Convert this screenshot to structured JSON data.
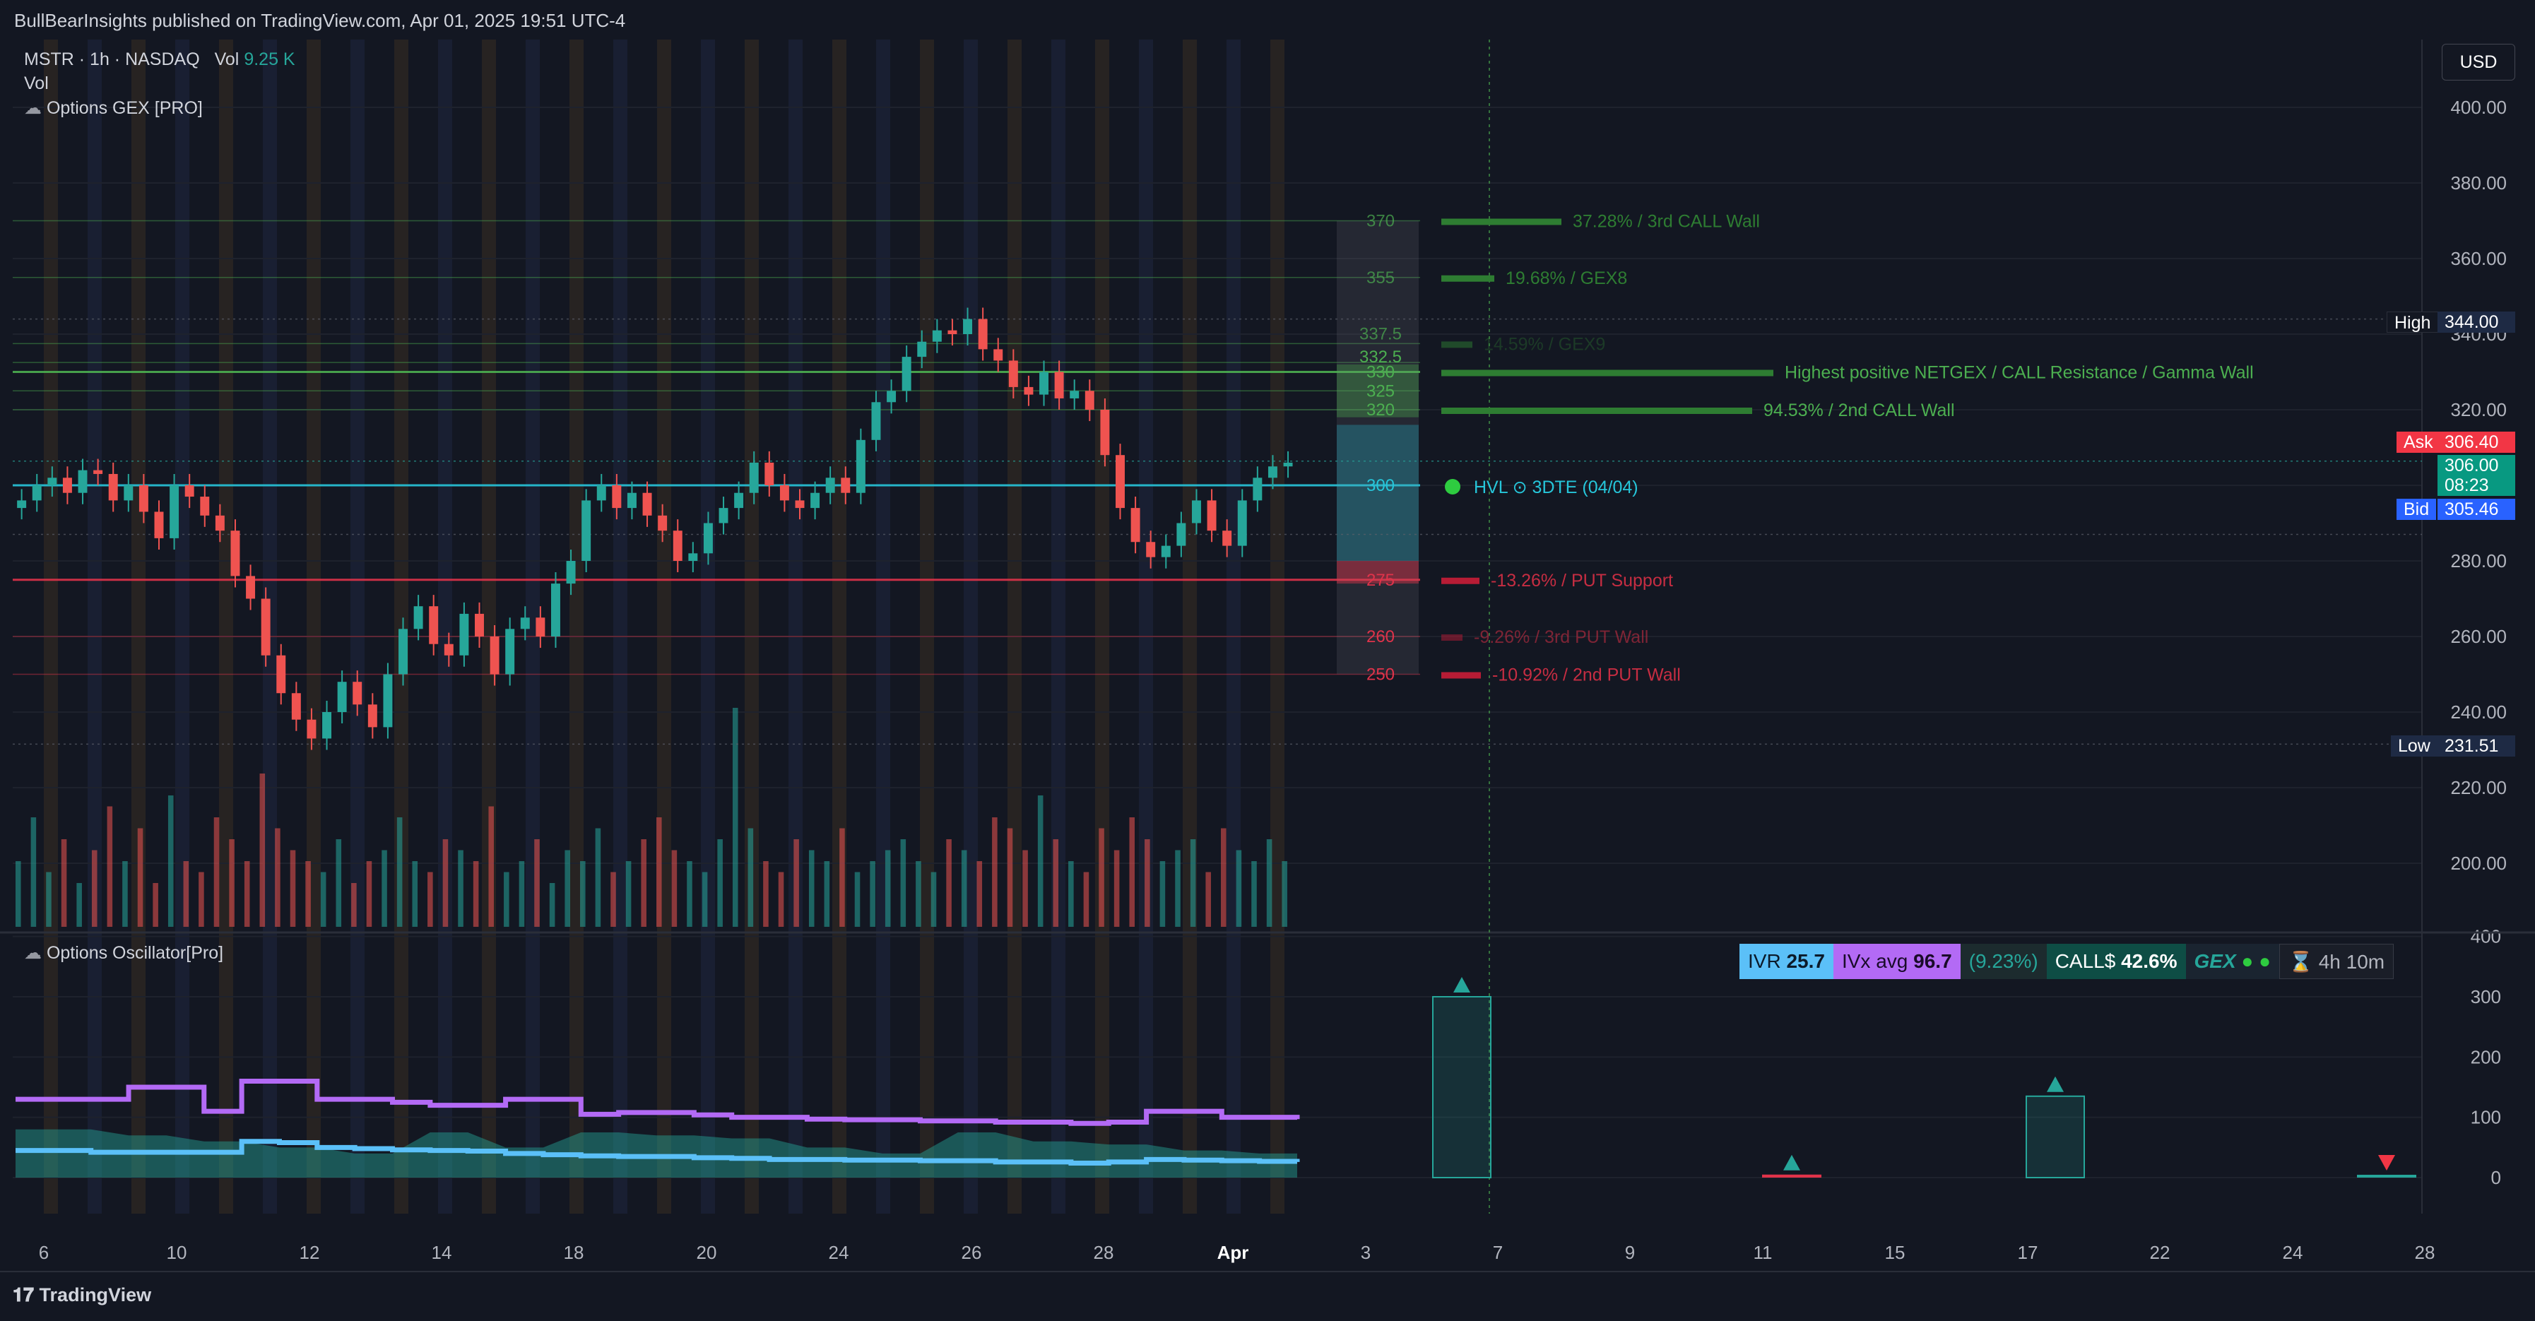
{
  "header": {
    "publisher": "BullBearInsights published on TradingView.com, Apr 01, 2025 19:51 UTC-4",
    "symbol": "MSTR · 1h · NASDAQ",
    "vol_label": "Vol",
    "vol_value": "9.25 K",
    "vol_line": "Vol",
    "indicator1": "Options GEX [PRO]",
    "indicator2": "Options Oscillator[Pro]",
    "currency": "USD",
    "brand": "TradingView"
  },
  "colors": {
    "background": "#131722",
    "up": "#26a69a",
    "down": "#ef5350",
    "call": "#4caf50",
    "put": "#e0334a",
    "hvl": "#26c6da",
    "ivr": "#5bc0f8",
    "ivx": "#b36af5"
  },
  "price_markers": {
    "high_label": "High",
    "high_value": "344.00",
    "ask_label": "Ask",
    "ask_value": "306.40",
    "last_value": "306.00",
    "countdown": "08:23",
    "bid_label": "Bid",
    "bid_value": "305.46",
    "low_label": "Low",
    "low_value": "231.51"
  },
  "oscillator_panel": {
    "ivr_label": "IVR",
    "ivr_value": "25.7",
    "ivx_label": "IVx avg",
    "ivx_value": "96.7",
    "change": "(9.23%)",
    "call_label": "CALL$",
    "call_value": "42.6%",
    "gex_label": "GEX",
    "timer": "4h 10m"
  },
  "chart_data": {
    "type": "candlestick",
    "price_axis": {
      "ticks": [
        "400.00",
        "380.00",
        "360.00",
        "340.00",
        "320.00",
        "300.00",
        "280.00",
        "260.00",
        "240.00",
        "220.00",
        "200.00"
      ],
      "ylim": [
        182,
        408
      ]
    },
    "oscillator_axis": {
      "ticks": [
        "400",
        "300",
        "200",
        "100",
        "0"
      ],
      "ylim": [
        -40,
        400
      ]
    },
    "x_ticks": [
      "6",
      "10",
      "12",
      "14",
      "18",
      "20",
      "24",
      "26",
      "28",
      "Apr",
      "3",
      "7",
      "9",
      "11",
      "15",
      "17",
      "22",
      "24",
      "28"
    ],
    "candles_close_path": [
      296,
      300,
      302,
      298,
      304,
      303,
      296,
      300,
      293,
      286,
      300,
      297,
      292,
      288,
      276,
      270,
      255,
      245,
      238,
      233,
      240,
      248,
      242,
      236,
      250,
      262,
      268,
      258,
      255,
      266,
      260,
      250,
      262,
      265,
      260,
      274,
      280,
      296,
      300,
      294,
      298,
      292,
      288,
      280,
      282,
      290,
      294,
      298,
      306,
      300,
      296,
      294,
      298,
      302,
      298,
      312,
      322,
      325,
      334,
      338,
      341,
      340,
      344,
      336,
      333,
      326,
      324,
      330,
      323,
      325,
      320,
      308,
      294,
      285,
      281,
      284,
      290,
      296,
      288,
      284,
      296,
      302,
      305,
      306
    ],
    "candles_open_path": [
      294,
      296,
      300,
      302,
      298,
      304,
      303,
      296,
      300,
      293,
      286,
      300,
      297,
      292,
      288,
      276,
      270,
      255,
      245,
      238,
      233,
      240,
      248,
      242,
      236,
      250,
      262,
      268,
      258,
      255,
      266,
      260,
      250,
      262,
      265,
      260,
      274,
      280,
      296,
      300,
      294,
      298,
      292,
      288,
      280,
      282,
      290,
      294,
      298,
      306,
      300,
      296,
      294,
      298,
      302,
      298,
      312,
      322,
      325,
      334,
      338,
      341,
      340,
      344,
      336,
      333,
      326,
      324,
      330,
      323,
      325,
      320,
      308,
      294,
      285,
      281,
      284,
      290,
      296,
      288,
      284,
      296,
      302,
      305
    ],
    "volume_path": [
      0.3,
      0.5,
      0.25,
      0.4,
      0.2,
      0.35,
      0.55,
      0.3,
      0.45,
      0.2,
      0.6,
      0.3,
      0.25,
      0.5,
      0.4,
      0.3,
      0.7,
      0.45,
      0.35,
      0.3,
      0.25,
      0.4,
      0.2,
      0.3,
      0.35,
      0.5,
      0.3,
      0.25,
      0.4,
      0.35,
      0.3,
      0.55,
      0.25,
      0.3,
      0.4,
      0.2,
      0.35,
      0.3,
      0.45,
      0.25,
      0.3,
      0.4,
      0.5,
      0.35,
      0.3,
      0.25,
      0.4,
      1.0,
      0.45,
      0.3,
      0.25,
      0.4,
      0.35,
      0.3,
      0.45,
      0.25,
      0.3,
      0.35,
      0.4,
      0.3,
      0.25,
      0.4,
      0.35,
      0.3,
      0.5,
      0.45,
      0.35,
      0.6,
      0.4,
      0.3,
      0.25,
      0.45,
      0.35,
      0.5,
      0.4,
      0.3,
      0.35,
      0.4,
      0.25,
      0.45,
      0.35,
      0.3,
      0.4,
      0.3
    ],
    "gex_levels": [
      {
        "level": "370",
        "label": "37.28% / 3rd CALL Wall",
        "value": 370,
        "kind": "call"
      },
      {
        "level": "355",
        "label": "19.68% / GEX8",
        "value": 355,
        "kind": "call"
      },
      {
        "level": "337.5",
        "label": "14.59% / GEX9",
        "value": 337.5,
        "kind": "call"
      },
      {
        "level": "332.5",
        "label": "",
        "value": 332.5,
        "kind": "call"
      },
      {
        "level": "330",
        "label": "Highest positive NETGEX / CALL Resistance / Gamma Wall",
        "value": 330,
        "kind": "call"
      },
      {
        "level": "325",
        "label": "",
        "value": 325,
        "kind": "call"
      },
      {
        "level": "320",
        "label": "94.53% / 2nd CALL Wall",
        "value": 320,
        "kind": "call"
      },
      {
        "level": "300",
        "label": "HVL",
        "value": 300,
        "kind": "hvl"
      },
      {
        "level": "275",
        "label": "-13.26% / PUT Support",
        "value": 275,
        "kind": "put"
      },
      {
        "level": "260",
        "label": "-9.26% / 3rd PUT Wall",
        "value": 260,
        "kind": "put"
      },
      {
        "level": "250",
        "label": "-10.92% / 2nd PUT Wall",
        "value": 250,
        "kind": "put"
      }
    ],
    "hvl_note": "3DTE (04/04)",
    "oscillator_series": [
      {
        "kind": "ivx",
        "values": [
          130,
          130,
          130,
          150,
          150,
          110,
          160,
          160,
          130,
          130,
          125,
          120,
          120,
          130,
          130,
          105,
          108,
          108,
          104,
          100,
          100,
          97,
          96,
          96,
          94,
          94,
          92,
          92,
          90,
          92,
          110,
          110,
          100,
          100,
          97
        ]
      },
      {
        "kind": "ivr",
        "values": [
          45,
          45,
          42,
          42,
          42,
          42,
          60,
          58,
          50,
          48,
          46,
          45,
          44,
          40,
          38,
          36,
          35,
          35,
          33,
          32,
          30,
          30,
          29,
          29,
          28,
          28,
          26,
          26,
          24,
          26,
          30,
          29,
          28,
          27,
          26
        ]
      },
      {
        "kind": "fill",
        "values": [
          80,
          80,
          80,
          70,
          70,
          60,
          60,
          50,
          50,
          40,
          40,
          75,
          75,
          50,
          50,
          75,
          75,
          70,
          70,
          65,
          65,
          50,
          50,
          40,
          40,
          75,
          75,
          60,
          60,
          55,
          55,
          45,
          45,
          40,
          40
        ]
      }
    ],
    "oscillator_bars": [
      {
        "date": "6",
        "value": 300,
        "marker": "up"
      },
      {
        "date": "12",
        "value": 5,
        "marker": "up"
      },
      {
        "date": "18",
        "value": 135,
        "marker": "up"
      },
      {
        "date": "27",
        "value": 3,
        "marker": "down"
      }
    ]
  }
}
